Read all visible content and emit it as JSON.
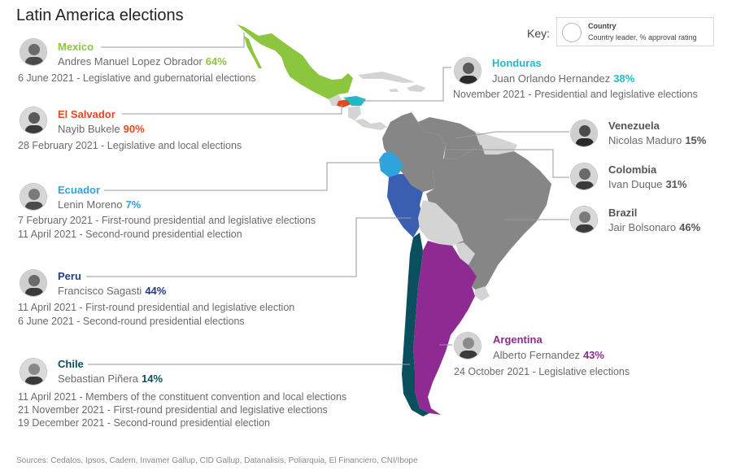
{
  "title": "Latin America elections",
  "source": "Sources: Cedatos, Ipsos, Cadem, Invamer Gallup, CID Gallup, Datanalisis, Poliarquia, El Financiero, CNI/Ibope",
  "key": {
    "label": "Key:",
    "country": "Country",
    "leader": "Country leader, % approval rating"
  },
  "colors": {
    "mexico": "#8cc63f",
    "el_salvador": "#e1491f",
    "honduras": "#22b9c7",
    "ecuador": "#2fa3dc",
    "peru": "#3b5fb0",
    "chile": "#0a4f5e",
    "argentina": "#8e2a91",
    "other_country": "#868686",
    "secondary_land": "#d4d4d4",
    "line": "#9a9a9a"
  },
  "countries": [
    {
      "id": "mexico",
      "name": "Mexico",
      "leader": "Andres Manuel Lopez Obrador",
      "rating": "64%",
      "events": [
        {
          "date": "6 June 2021",
          "desc": "Legislative and gubernatorial elections"
        }
      ]
    },
    {
      "id": "el_salvador",
      "name": "El Salvador",
      "leader": "Nayib Bukele",
      "rating": "90%",
      "events": [
        {
          "date": "28 February 2021",
          "desc": "Legislative and local elections"
        }
      ]
    },
    {
      "id": "ecuador",
      "name": "Ecuador",
      "leader": "Lenin Moreno",
      "rating": "7%",
      "events": [
        {
          "date": "7 February 2021",
          "desc": "First-round presidential and legislative elections"
        },
        {
          "date": "11 April 2021",
          "desc": "Second-round presidential election"
        }
      ]
    },
    {
      "id": "peru",
      "name": "Peru",
      "leader": "Francisco Sagasti",
      "rating": "44%",
      "events": [
        {
          "date": "11 April 2021",
          "desc": "First-round presidential and legislative election"
        },
        {
          "date": "6 June 2021",
          "desc": "Second-round presidential elections"
        }
      ]
    },
    {
      "id": "chile",
      "name": "Chile",
      "leader": "Sebastian Piñera",
      "rating": "14%",
      "events": [
        {
          "date": "11 April 2021",
          "desc": "Members of the constituent convention and local elections"
        },
        {
          "date": "21 November 2021",
          "desc": "First-round presidential and legislative elections"
        },
        {
          "date": "19 December 2021",
          "desc": "Second-round presidential election"
        }
      ]
    },
    {
      "id": "honduras",
      "name": "Honduras",
      "leader": "Juan Orlando Hernandez",
      "rating": "38%",
      "events": [
        {
          "date": "November 2021",
          "desc": "Presidential and legislative elections"
        }
      ]
    },
    {
      "id": "venezuela",
      "name": "Venezuela",
      "leader": "Nicolas Maduro",
      "rating": "15%",
      "events": []
    },
    {
      "id": "colombia",
      "name": "Colombia",
      "leader": "Ivan Duque",
      "rating": "31%",
      "events": []
    },
    {
      "id": "brazil",
      "name": "Brazil",
      "leader": "Jair Bolsonaro",
      "rating": "46%",
      "events": []
    },
    {
      "id": "argentina",
      "name": "Argentina",
      "leader": "Alberto Fernandez",
      "rating": "43%",
      "events": [
        {
          "date": "24 October 2021",
          "desc": "Legislative elections"
        }
      ]
    }
  ]
}
